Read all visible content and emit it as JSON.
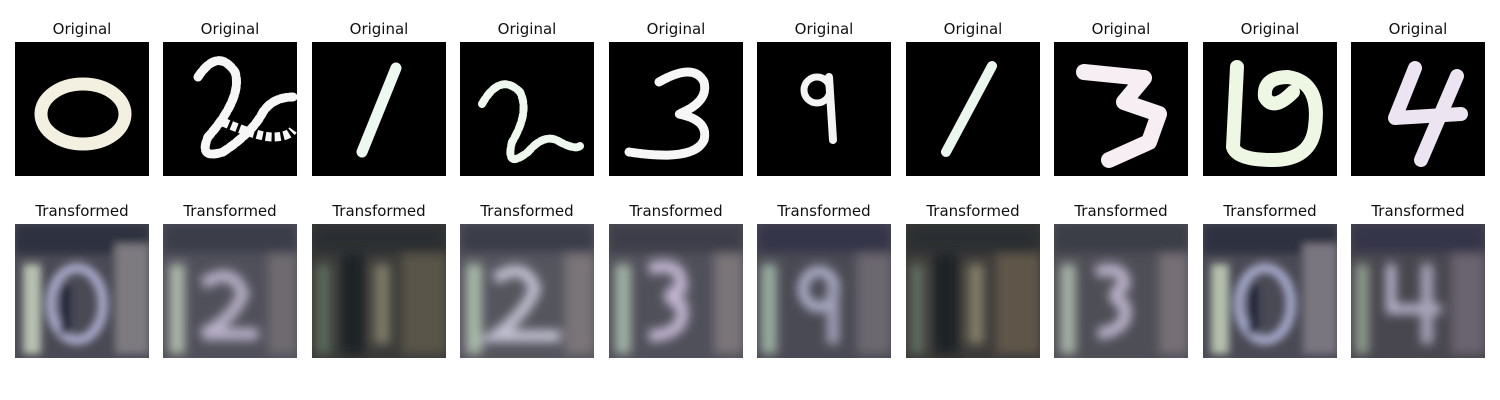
{
  "rows": {
    "top_title": "Original",
    "bottom_title": "Transformed"
  },
  "samples": [
    {
      "original_digit": "0",
      "transformed_digit": "0",
      "stroke": "#f3f0e2"
    },
    {
      "original_digit": "2",
      "transformed_digit": "2",
      "stroke": "#f6f6f6"
    },
    {
      "original_digit": "1",
      "transformed_digit": "1",
      "stroke": "#ecf8f0"
    },
    {
      "original_digit": "2",
      "transformed_digit": "2",
      "stroke": "#eef8ee"
    },
    {
      "original_digit": "3",
      "transformed_digit": "3",
      "stroke": "#f6f6f6"
    },
    {
      "original_digit": "9",
      "transformed_digit": "9",
      "stroke": "#f4f4f4"
    },
    {
      "original_digit": "1",
      "transformed_digit": "1",
      "stroke": "#eaf6ee"
    },
    {
      "original_digit": "3",
      "transformed_digit": "3",
      "stroke": "#f6eef2"
    },
    {
      "original_digit": "0",
      "transformed_digit": "0",
      "stroke": "#eef6e4"
    },
    {
      "original_digit": "4",
      "transformed_digit": "4",
      "stroke": "#ece4f0"
    }
  ]
}
